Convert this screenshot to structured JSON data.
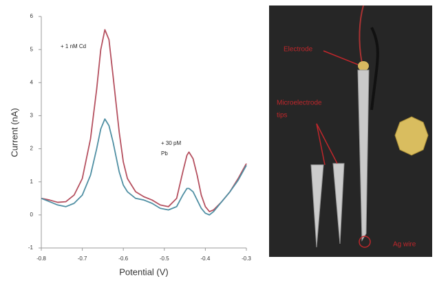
{
  "chart_data": {
    "type": "line",
    "xlabel": "Potential (V)",
    "ylabel": "Current (nA)",
    "annotations": [
      "+ 1 nM Cd",
      "+ 30 pM",
      "Pb"
    ],
    "x": [
      -0.8,
      -0.78,
      -0.76,
      -0.74,
      -0.72,
      -0.7,
      -0.68,
      -0.665,
      -0.655,
      -0.645,
      -0.635,
      -0.625,
      -0.61,
      -0.6,
      -0.59,
      -0.57,
      -0.55,
      -0.53,
      -0.51,
      -0.49,
      -0.47,
      -0.455,
      -0.445,
      -0.44,
      -0.43,
      -0.42,
      -0.41,
      -0.4,
      -0.39,
      -0.38,
      -0.36,
      -0.34,
      -0.32,
      -0.3
    ],
    "series": [
      {
        "color": "#b5505f",
        "values": [
          0.5,
          0.45,
          0.38,
          0.4,
          0.6,
          1.1,
          2.3,
          3.8,
          5.0,
          5.6,
          5.3,
          4.2,
          2.5,
          1.6,
          1.1,
          0.7,
          0.55,
          0.45,
          0.3,
          0.25,
          0.5,
          1.3,
          1.8,
          1.9,
          1.7,
          1.2,
          0.6,
          0.25,
          0.1,
          0.15,
          0.4,
          0.7,
          1.1,
          1.55
        ]
      },
      {
        "color": "#4f8fa3",
        "values": [
          0.5,
          0.4,
          0.3,
          0.25,
          0.35,
          0.6,
          1.2,
          2.0,
          2.6,
          2.9,
          2.7,
          2.2,
          1.3,
          0.9,
          0.7,
          0.5,
          0.45,
          0.35,
          0.2,
          0.15,
          0.25,
          0.6,
          0.8,
          0.8,
          0.7,
          0.45,
          0.2,
          0.05,
          0.0,
          0.1,
          0.4,
          0.7,
          1.05,
          1.5
        ]
      }
    ],
    "xlim": [
      -0.8,
      -0.3
    ],
    "xticks": [
      -0.8,
      -0.7,
      -0.6,
      -0.5,
      -0.4,
      -0.3
    ],
    "ylim": [
      -1,
      6
    ],
    "yticks": [
      -1,
      0,
      1,
      2,
      3,
      4,
      5,
      6
    ],
    "grid": false
  },
  "photo": {
    "labels": [
      "Electrode",
      "Microelectrode",
      "tips",
      "Ag wire"
    ]
  }
}
